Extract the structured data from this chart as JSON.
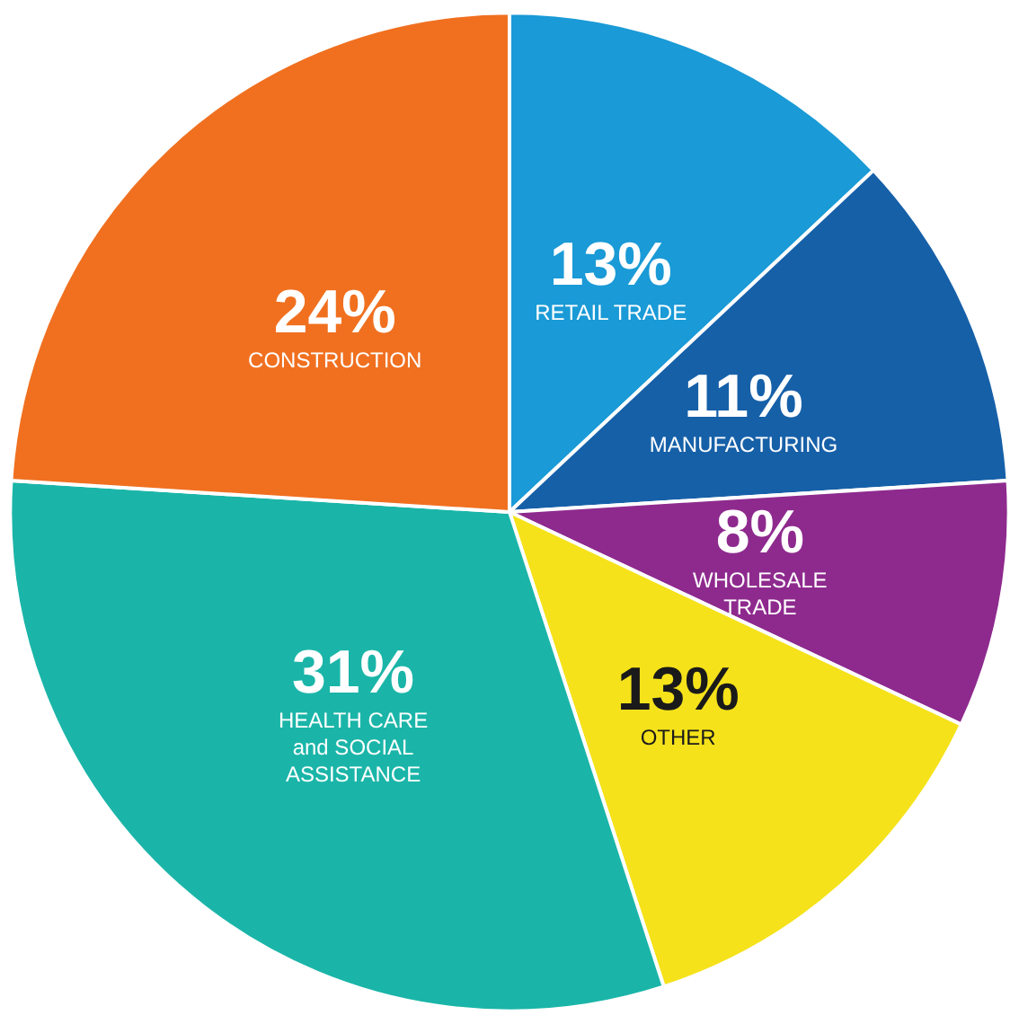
{
  "chart_data": {
    "type": "pie",
    "categories": [
      "RETAIL TRADE",
      "MANUFACTURING",
      "WHOLESALE\nTRADE",
      "OTHER",
      "HEALTH CARE\nand SOCIAL\nASSISTANCE",
      "CONSTRUCTION"
    ],
    "values": [
      13,
      11,
      8,
      13,
      31,
      24
    ],
    "colors": [
      "#1a9ad6",
      "#1660a8",
      "#8e2a8e",
      "#f5e21a",
      "#1ab5a8",
      "#f07020"
    ],
    "value_labels": [
      "13%",
      "11%",
      "8%",
      "13%",
      "31%",
      "24%"
    ]
  }
}
